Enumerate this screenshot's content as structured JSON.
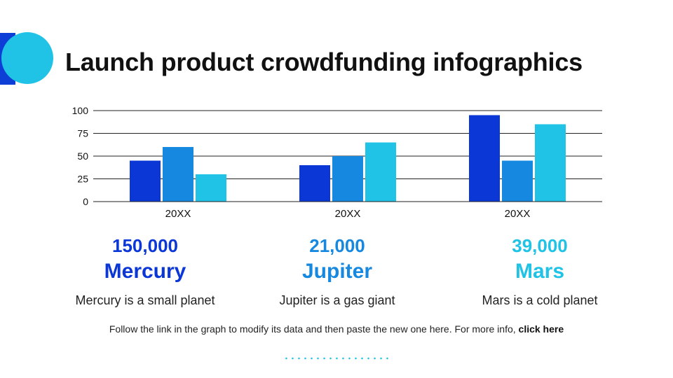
{
  "title": "Launch product crowdfunding infographics",
  "colors": {
    "series1": "#0a37d6",
    "series2": "#1688e0",
    "series3": "#20c3e6"
  },
  "chart_data": {
    "type": "bar",
    "categories": [
      "20XX",
      "20XX",
      "20XX"
    ],
    "series": [
      {
        "values": [
          45,
          40,
          95
        ]
      },
      {
        "values": [
          60,
          50,
          45
        ]
      },
      {
        "values": [
          30,
          65,
          85
        ]
      }
    ],
    "ylim": [
      0,
      100
    ],
    "yticks": [
      0,
      25,
      50,
      75,
      100
    ],
    "grid": true,
    "legend": "none"
  },
  "stats": [
    {
      "value": "150,000",
      "name": "Mercury",
      "desc": "Mercury is a small planet",
      "color": "#0a37d6"
    },
    {
      "value": "21,000",
      "name": "Jupiter",
      "desc": "Jupiter is a gas giant",
      "color": "#1688e0"
    },
    {
      "value": "39,000",
      "name": "Mars",
      "desc": "Mars is a cold planet",
      "color": "#20c3e6"
    }
  ],
  "footer": {
    "text": "Follow the link in the graph to modify its data and then paste the new one here. For more info,",
    "link": "click here"
  }
}
